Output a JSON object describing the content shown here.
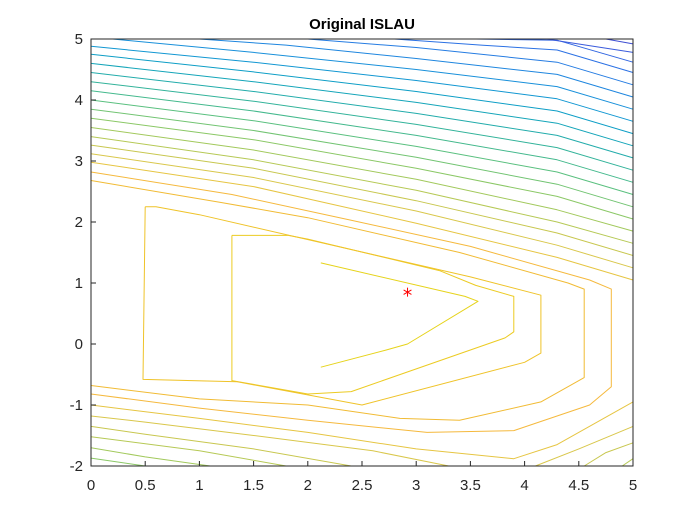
{
  "chart_data": {
    "type": "contour",
    "title": "Original ISLAU",
    "xlabel": "",
    "ylabel": "",
    "xlim": [
      0,
      5
    ],
    "ylim": [
      -2,
      5
    ],
    "x_ticks": [
      "0",
      "0.5",
      "1",
      "1.5",
      "2",
      "2.5",
      "3",
      "3.5",
      "4",
      "4.5",
      "5"
    ],
    "y_ticks": [
      "-2",
      "-1",
      "0",
      "1",
      "2",
      "3",
      "4",
      "5"
    ],
    "grid": false,
    "colormap": "parula",
    "marker": {
      "x": 2.92,
      "y": 0.85,
      "symbol": "*",
      "color": "#ff0000"
    },
    "contours": [
      {
        "color": "#e6d31a",
        "points": [
          [
            2.12,
            -0.38
          ],
          [
            2.72,
            -0.1
          ],
          [
            2.92,
            0.0
          ],
          [
            3.57,
            0.7
          ],
          [
            3.45,
            0.78
          ],
          [
            2.12,
            1.33
          ]
        ]
      },
      {
        "color": "#eccb22",
        "points": [
          [
            1.3,
            1.78
          ],
          [
            1.82,
            1.78
          ],
          [
            2.0,
            1.72
          ],
          [
            3.22,
            1.2
          ],
          [
            3.55,
            0.96
          ],
          [
            3.9,
            0.78
          ],
          [
            3.9,
            0.2
          ],
          [
            3.82,
            0.1
          ],
          [
            2.4,
            -0.78
          ],
          [
            2.0,
            -0.82
          ],
          [
            1.3,
            -0.6
          ],
          [
            1.3,
            1.78
          ]
        ]
      },
      {
        "color": "#efc329",
        "points": [
          [
            0.5,
            2.25
          ],
          [
            0.6,
            2.25
          ],
          [
            1.0,
            2.12
          ],
          [
            3.5,
            1.1
          ],
          [
            4.15,
            0.8
          ],
          [
            4.15,
            -0.15
          ],
          [
            4.0,
            -0.3
          ],
          [
            2.5,
            -1.0
          ],
          [
            1.35,
            -0.62
          ],
          [
            0.48,
            -0.58
          ],
          [
            0.5,
            2.25
          ]
        ]
      },
      {
        "color": "#f1bb34",
        "points": [
          [
            0.0,
            2.68
          ],
          [
            1.2,
            2.32
          ],
          [
            2.0,
            2.07
          ],
          [
            3.4,
            1.5
          ],
          [
            4.4,
            1.0
          ],
          [
            4.55,
            0.9
          ],
          [
            4.55,
            -0.55
          ],
          [
            4.15,
            -0.95
          ],
          [
            3.4,
            -1.25
          ],
          [
            2.85,
            -1.22
          ],
          [
            2.0,
            -1.0
          ],
          [
            1.0,
            -0.9
          ],
          [
            0.0,
            -0.68
          ]
        ]
      },
      {
        "color": "#f5b93d",
        "points": [
          [
            0.0,
            2.82
          ],
          [
            1.3,
            2.45
          ],
          [
            2.4,
            2.03
          ],
          [
            3.5,
            1.6
          ],
          [
            4.6,
            1.05
          ],
          [
            4.8,
            0.9
          ],
          [
            4.8,
            -0.7
          ],
          [
            4.6,
            -1.0
          ],
          [
            3.9,
            -1.42
          ],
          [
            3.1,
            -1.45
          ],
          [
            2.0,
            -1.25
          ],
          [
            1.0,
            -1.05
          ],
          [
            0.0,
            -0.82
          ]
        ]
      },
      {
        "color": "#e6c542",
        "points": [
          [
            0.0,
            2.98
          ],
          [
            1.5,
            2.58
          ],
          [
            3.0,
            1.98
          ],
          [
            4.3,
            1.42
          ],
          [
            5.0,
            1.05
          ]
        ]
      },
      {
        "color": "#e6c542",
        "points": [
          [
            5.0,
            -0.95
          ],
          [
            4.3,
            -1.65
          ],
          [
            3.9,
            -1.88
          ],
          [
            3.0,
            -1.72
          ],
          [
            2.0,
            -1.45
          ],
          [
            1.0,
            -1.22
          ],
          [
            0.0,
            -1.0
          ]
        ]
      },
      {
        "color": "#d9c74b",
        "points": [
          [
            0.0,
            3.12
          ],
          [
            1.5,
            2.73
          ],
          [
            3.0,
            2.18
          ],
          [
            4.3,
            1.62
          ],
          [
            5.0,
            1.25
          ]
        ]
      },
      {
        "color": "#d9c74b",
        "points": [
          [
            5.0,
            -1.35
          ],
          [
            4.5,
            -1.72
          ],
          [
            4.1,
            -2.0
          ]
        ]
      },
      {
        "color": "#d9c74b",
        "points": [
          [
            3.3,
            -2.0
          ],
          [
            2.6,
            -1.75
          ],
          [
            1.5,
            -1.5
          ],
          [
            0.5,
            -1.28
          ],
          [
            0.0,
            -1.18
          ]
        ]
      },
      {
        "color": "#c8c74f",
        "points": [
          [
            0.0,
            3.26
          ],
          [
            1.5,
            2.88
          ],
          [
            3.0,
            2.35
          ],
          [
            4.3,
            1.82
          ],
          [
            5.0,
            1.45
          ]
        ]
      },
      {
        "color": "#c8c74f",
        "points": [
          [
            5.0,
            -1.62
          ],
          [
            4.75,
            -1.78
          ],
          [
            4.55,
            -2.0
          ]
        ]
      },
      {
        "color": "#c8c74f",
        "points": [
          [
            2.4,
            -2.0
          ],
          [
            1.5,
            -1.72
          ],
          [
            0.5,
            -1.48
          ],
          [
            0.0,
            -1.35
          ]
        ]
      },
      {
        "color": "#b6c955",
        "points": [
          [
            0.0,
            3.4
          ],
          [
            1.5,
            3.02
          ],
          [
            3.0,
            2.52
          ],
          [
            4.3,
            2.0
          ],
          [
            5.0,
            1.65
          ]
        ]
      },
      {
        "color": "#b6c955",
        "points": [
          [
            5.0,
            -1.88
          ],
          [
            4.9,
            -2.0
          ]
        ]
      },
      {
        "color": "#b6c955",
        "points": [
          [
            1.8,
            -2.0
          ],
          [
            1.0,
            -1.75
          ],
          [
            0.0,
            -1.52
          ]
        ]
      },
      {
        "color": "#a2c95c",
        "points": [
          [
            0.0,
            3.55
          ],
          [
            1.5,
            3.18
          ],
          [
            3.0,
            2.7
          ],
          [
            4.3,
            2.2
          ],
          [
            5.0,
            1.85
          ]
        ]
      },
      {
        "color": "#a2c95c",
        "points": [
          [
            1.1,
            -2.0
          ],
          [
            0.5,
            -1.85
          ],
          [
            0.0,
            -1.7
          ]
        ]
      },
      {
        "color": "#8bc866",
        "points": [
          [
            0.0,
            3.7
          ],
          [
            1.5,
            3.35
          ],
          [
            3.0,
            2.88
          ],
          [
            4.3,
            2.42
          ],
          [
            5.0,
            2.05
          ]
        ]
      },
      {
        "color": "#8bc866",
        "points": [
          [
            0.5,
            -2.0
          ],
          [
            0.0,
            -1.87
          ]
        ]
      },
      {
        "color": "#72c472",
        "points": [
          [
            0.0,
            3.85
          ],
          [
            1.5,
            3.5
          ],
          [
            3.0,
            3.06
          ],
          [
            4.3,
            2.62
          ],
          [
            5.0,
            2.25
          ]
        ]
      },
      {
        "color": "#5ac07f",
        "points": [
          [
            0.0,
            4.0
          ],
          [
            1.5,
            3.66
          ],
          [
            3.0,
            3.24
          ],
          [
            4.3,
            2.82
          ],
          [
            5.0,
            2.45
          ]
        ]
      },
      {
        "color": "#44b98d",
        "points": [
          [
            0.0,
            4.15
          ],
          [
            1.5,
            3.82
          ],
          [
            3.0,
            3.42
          ],
          [
            4.3,
            3.02
          ],
          [
            5.0,
            2.65
          ]
        ]
      },
      {
        "color": "#32b39a",
        "points": [
          [
            0.0,
            4.3
          ],
          [
            1.5,
            3.98
          ],
          [
            3.0,
            3.6
          ],
          [
            4.3,
            3.22
          ],
          [
            5.0,
            2.85
          ]
        ]
      },
      {
        "color": "#22acab",
        "points": [
          [
            0.0,
            4.45
          ],
          [
            1.5,
            4.14
          ],
          [
            3.0,
            3.78
          ],
          [
            4.3,
            3.42
          ],
          [
            5.0,
            3.05
          ]
        ]
      },
      {
        "color": "#14a5b9",
        "points": [
          [
            0.0,
            4.6
          ],
          [
            1.5,
            4.3
          ],
          [
            3.0,
            3.96
          ],
          [
            4.3,
            3.62
          ],
          [
            5.0,
            3.25
          ]
        ]
      },
      {
        "color": "#0d9ec6",
        "points": [
          [
            0.0,
            4.75
          ],
          [
            1.5,
            4.46
          ],
          [
            3.0,
            4.14
          ],
          [
            4.3,
            3.82
          ],
          [
            5.0,
            3.45
          ]
        ]
      },
      {
        "color": "#1197d2",
        "points": [
          [
            0.0,
            4.88
          ],
          [
            1.5,
            4.62
          ],
          [
            3.0,
            4.32
          ],
          [
            4.3,
            4.02
          ],
          [
            5.0,
            3.65
          ]
        ]
      },
      {
        "color": "#1890da",
        "points": [
          [
            0.2,
            5.0
          ],
          [
            1.5,
            4.78
          ],
          [
            3.0,
            4.5
          ],
          [
            4.3,
            4.22
          ],
          [
            5.0,
            3.85
          ]
        ]
      },
      {
        "color": "#1e86df",
        "points": [
          [
            1.0,
            5.0
          ],
          [
            1.8,
            4.9
          ],
          [
            3.0,
            4.68
          ],
          [
            4.3,
            4.42
          ],
          [
            5.0,
            4.05
          ]
        ]
      },
      {
        "color": "#257ce2",
        "points": [
          [
            2.0,
            5.0
          ],
          [
            3.0,
            4.86
          ],
          [
            4.3,
            4.62
          ],
          [
            5.0,
            4.25
          ]
        ]
      },
      {
        "color": "#2b71e4",
        "points": [
          [
            2.8,
            5.0
          ],
          [
            3.6,
            4.9
          ],
          [
            4.3,
            4.82
          ],
          [
            5.0,
            4.45
          ]
        ]
      },
      {
        "color": "#3166e1",
        "points": [
          [
            3.55,
            5.0
          ],
          [
            4.3,
            4.98
          ],
          [
            5.0,
            4.62
          ]
        ]
      },
      {
        "color": "#3a5bdc",
        "points": [
          [
            4.2,
            5.0
          ],
          [
            5.0,
            4.78
          ]
        ]
      },
      {
        "color": "#3f4fd2",
        "points": [
          [
            4.75,
            5.0
          ],
          [
            5.0,
            4.92
          ]
        ]
      }
    ]
  }
}
